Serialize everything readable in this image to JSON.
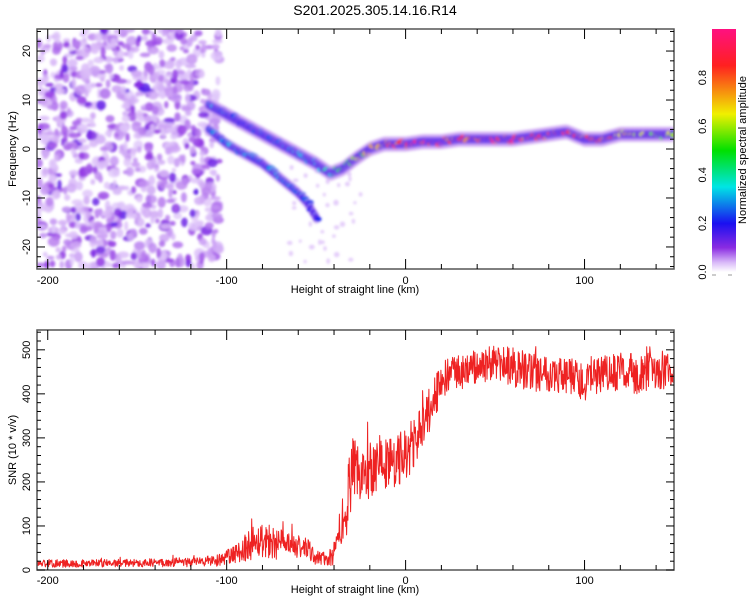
{
  "title": "S201.2025.305.14.16.R14",
  "chart_data": [
    {
      "type": "heatmap",
      "name": "spectrogram",
      "xlabel": "Height of straight line (km)",
      "ylabel": "Frequency (Hz)",
      "xlim": [
        -206,
        150
      ],
      "ylim": [
        -24.5,
        24.5
      ],
      "xticks": [
        -200,
        -100,
        0,
        100
      ],
      "xtick_labels": [
        "-200",
        "-100",
        "0",
        "100"
      ],
      "yticks": [
        -20,
        -10,
        0,
        10,
        20
      ],
      "ytick_labels": [
        "-20",
        "-10",
        "0",
        "10",
        "20"
      ],
      "colorbar": {
        "label": "Normalized spectral amplitude",
        "range": [
          0,
          1
        ],
        "ticks": [
          0.0,
          0.2,
          0.4,
          0.6,
          0.8
        ],
        "tick_labels": [
          "0.0",
          "0.2",
          "0.4",
          "0.6",
          "0.8"
        ],
        "colors": [
          "#ffffff",
          "#d8b8f8",
          "#8a2be2",
          "#1a10f0",
          "#00e5e5",
          "#00e000",
          "#f0f000",
          "#ff2020",
          "#ff1080"
        ]
      },
      "noise_region": {
        "x_range": [
          -206,
          -108
        ],
        "amplitude": 0.1
      },
      "main_trace": {
        "x": [
          -110,
          -100,
          -90,
          -80,
          -70,
          -60,
          -50,
          -42,
          -35,
          -28,
          -20,
          -12,
          -5,
          0,
          10,
          20,
          30,
          40,
          50,
          60,
          70,
          80,
          90,
          100,
          110,
          120,
          130,
          140,
          150
        ],
        "freq_hz": [
          9,
          7,
          5,
          3,
          1,
          -1,
          -3,
          -5,
          -4,
          -2,
          0,
          1,
          1,
          1,
          1.5,
          1.5,
          2,
          2,
          2,
          2,
          2.5,
          3,
          3.5,
          2,
          2,
          3,
          3,
          3,
          3
        ],
        "amplitude": [
          0.3,
          0.25,
          0.2,
          0.25,
          0.3,
          0.3,
          0.35,
          0.4,
          0.5,
          0.6,
          0.7,
          0.8,
          0.85,
          0.9,
          0.95,
          0.95,
          0.9,
          0.9,
          0.95,
          0.95,
          0.9,
          0.85,
          0.95,
          0.85,
          0.8,
          0.8,
          0.6,
          0.6,
          0.6
        ]
      },
      "secondary_trace": {
        "x": [
          -110,
          -100,
          -90,
          -80,
          -70,
          -60,
          -55,
          -50
        ],
        "freq_hz": [
          4,
          1,
          -1,
          -3,
          -6,
          -9,
          -11,
          -14
        ],
        "amplitude": [
          0.25,
          0.3,
          0.3,
          0.25,
          0.3,
          0.25,
          0.25,
          0.2
        ]
      }
    },
    {
      "type": "line",
      "name": "snr",
      "xlabel": "Height of straight line (km)",
      "ylabel": "SNR (10 * v/v)",
      "xlim": [
        -206,
        150
      ],
      "ylim": [
        0,
        545
      ],
      "xticks": [
        -200,
        -100,
        0,
        100
      ],
      "xtick_labels": [
        "-200",
        "-100",
        "0",
        "100"
      ],
      "yticks": [
        0,
        100,
        200,
        300,
        400,
        500
      ],
      "ytick_labels": [
        "0",
        "100",
        "200",
        "300",
        "400",
        "500"
      ],
      "series": [
        {
          "name": "SNR",
          "color": "#ee2222",
          "x": [
            -206,
            -180,
            -150,
            -120,
            -105,
            -95,
            -90,
            -85,
            -80,
            -75,
            -70,
            -65,
            -60,
            -55,
            -50,
            -45,
            -40,
            -37,
            -33,
            -30,
            -25,
            -20,
            -15,
            -10,
            -5,
            0,
            5,
            10,
            15,
            20,
            30,
            40,
            50,
            60,
            70,
            80,
            90,
            100,
            110,
            120,
            130,
            140,
            150
          ],
          "mean": [
            15,
            15,
            16,
            18,
            22,
            35,
            50,
            65,
            70,
            65,
            60,
            50,
            55,
            45,
            30,
            25,
            30,
            80,
            150,
            220,
            210,
            230,
            250,
            240,
            250,
            260,
            290,
            330,
            380,
            430,
            450,
            460,
            470,
            460,
            450,
            450,
            440,
            430,
            440,
            450,
            445,
            450,
            460
          ],
          "spread": [
            10,
            10,
            10,
            12,
            15,
            25,
            35,
            45,
            45,
            45,
            40,
            35,
            35,
            30,
            20,
            18,
            25,
            60,
            80,
            90,
            80,
            80,
            70,
            70,
            70,
            70,
            70,
            60,
            55,
            50,
            45,
            45,
            45,
            50,
            50,
            50,
            50,
            50,
            50,
            50,
            50,
            50,
            50
          ]
        }
      ]
    }
  ]
}
